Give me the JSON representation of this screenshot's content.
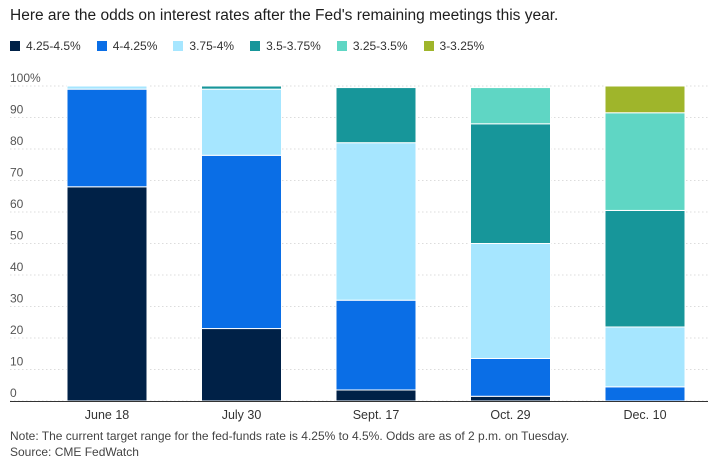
{
  "title": "Here are the odds on interest rates after the Fed's remaining meetings this year.",
  "note": "Note: The current target range for the fed-funds rate is 4.25% to 4.5%. Odds are as of 2 p.m. on Tuesday.",
  "source": "Source: CME FedWatch",
  "chart_data": {
    "type": "bar",
    "stacked": true,
    "categories": [
      "June 18",
      "July 30",
      "Sept. 17",
      "Oct. 29",
      "Dec. 10"
    ],
    "series": [
      {
        "name": "4.25-4.5%",
        "color": "#002147",
        "values": [
          68,
          23,
          3.5,
          1.5,
          0
        ]
      },
      {
        "name": "4-4.25%",
        "color": "#0a6ee6",
        "values": [
          31,
          55,
          28.5,
          12,
          4.5
        ]
      },
      {
        "name": "3.75-4%",
        "color": "#a6e6ff",
        "values": [
          1,
          21,
          50,
          36.5,
          19
        ]
      },
      {
        "name": "3.5-3.75%",
        "color": "#17969a",
        "values": [
          0,
          1,
          17.5,
          38,
          37
        ]
      },
      {
        "name": "3.25-3.5%",
        "color": "#5fd6c4",
        "values": [
          0,
          0,
          0,
          11.5,
          31
        ]
      },
      {
        "name": "3-3.25%",
        "color": "#9fb52b",
        "values": [
          0,
          0,
          0,
          0,
          8.5
        ]
      }
    ],
    "yticks": [
      "0",
      "10",
      "20",
      "30",
      "40",
      "50",
      "60",
      "70",
      "80",
      "90",
      "100%"
    ],
    "ylim": [
      0,
      100
    ],
    "xlabel": "",
    "ylabel": "",
    "legend_position": "top"
  }
}
